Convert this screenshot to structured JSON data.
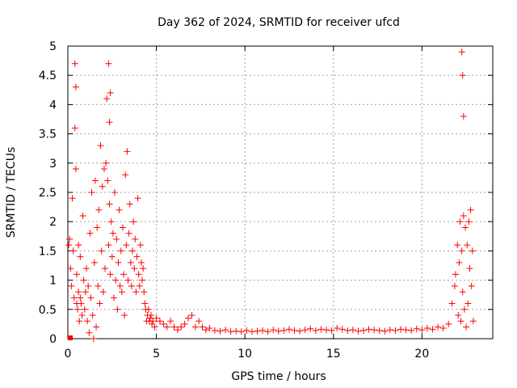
{
  "chart_data": {
    "type": "scatter",
    "title": "Day 362 of 2024, SRMTID for receiver ufcd",
    "xlabel": "GPS time / hours",
    "ylabel": "SRMTID / TECUs",
    "xlim": [
      0,
      24
    ],
    "ylim": [
      0,
      5
    ],
    "x_ticks": [
      0,
      5,
      10,
      15,
      20
    ],
    "x_tick_labels": [
      "0",
      "5",
      "10",
      "15",
      "20"
    ],
    "y_ticks": [
      0,
      0.5,
      1,
      1.5,
      2,
      2.5,
      3,
      3.5,
      4,
      4.5,
      5
    ],
    "y_tick_labels": [
      "0",
      "0.5",
      "1",
      "1.5",
      "2",
      "2.5",
      "3",
      "3.5",
      "4",
      "4.5",
      "5"
    ],
    "grid": true,
    "marker": "plus",
    "marker_color": "#ff0000",
    "series": [
      {
        "name": "SRMTID",
        "color": "#ff0000",
        "x": [
          0.05,
          0.1,
          0.15,
          0.2,
          0.25,
          0.3,
          0.35,
          0.4,
          0.4,
          0.45,
          0.45,
          0.5,
          0.5,
          0.55,
          0.6,
          0.6,
          0.65,
          0.7,
          0.7,
          0.75,
          0.8,
          0.85,
          0.9,
          0.95,
          1.0,
          1.05,
          1.1,
          1.15,
          1.2,
          1.25,
          1.3,
          1.35,
          1.4,
          1.45,
          1.5,
          1.55,
          1.6,
          1.65,
          1.7,
          1.75,
          1.8,
          1.85,
          1.9,
          1.95,
          2.0,
          2.05,
          2.1,
          2.15,
          2.2,
          2.25,
          2.3,
          2.3,
          2.35,
          2.35,
          2.4,
          2.4,
          2.45,
          2.5,
          2.55,
          2.6,
          2.65,
          2.7,
          2.75,
          2.8,
          2.85,
          2.9,
          2.95,
          3.0,
          3.05,
          3.1,
          3.15,
          3.2,
          3.25,
          3.3,
          3.35,
          3.4,
          3.45,
          3.5,
          3.55,
          3.6,
          3.65,
          3.7,
          3.75,
          3.8,
          3.85,
          3.9,
          3.95,
          4.0,
          4.05,
          4.1,
          4.15,
          4.2,
          4.25,
          4.3,
          4.35,
          4.4,
          4.45,
          4.5,
          4.55,
          4.6,
          4.65,
          4.7,
          4.75,
          4.8,
          4.9,
          5.0,
          5.2,
          5.4,
          5.6,
          5.8,
          6.0,
          6.2,
          6.4,
          6.6,
          6.8,
          7.0,
          7.2,
          7.4,
          7.6,
          7.8,
          8.0,
          8.3,
          8.6,
          8.9,
          9.2,
          9.5,
          9.8,
          10.1,
          10.4,
          10.7,
          11.0,
          11.3,
          11.6,
          11.9,
          12.2,
          12.5,
          12.8,
          13.1,
          13.4,
          13.7,
          14.0,
          14.3,
          14.6,
          14.9,
          15.2,
          15.5,
          15.8,
          16.1,
          16.4,
          16.7,
          17.0,
          17.3,
          17.6,
          17.9,
          18.2,
          18.5,
          18.8,
          19.1,
          19.4,
          19.7,
          20.0,
          20.3,
          20.6,
          20.9,
          21.2,
          21.5,
          21.7,
          21.85,
          21.9,
          22.0,
          22.05,
          22.1,
          22.15,
          22.2,
          22.25,
          22.25,
          22.3,
          22.3,
          22.35,
          22.35,
          22.4,
          22.45,
          22.5,
          22.55,
          22.6,
          22.65,
          22.7,
          22.75,
          22.8,
          22.85,
          22.9
        ],
        "y": [
          1.6,
          1.7,
          1.2,
          0.9,
          2.4,
          1.5,
          0.7,
          4.7,
          3.6,
          2.9,
          4.3,
          0.6,
          1.1,
          0.5,
          0.8,
          1.6,
          0.3,
          0.7,
          1.4,
          0.6,
          0.4,
          2.1,
          1.0,
          0.5,
          0.8,
          1.2,
          0.3,
          0.9,
          0.1,
          1.8,
          0.7,
          2.5,
          0.4,
          0.0,
          1.3,
          2.7,
          0.2,
          1.9,
          0.9,
          2.2,
          0.6,
          3.3,
          1.5,
          2.6,
          0.8,
          2.9,
          1.2,
          3.0,
          4.1,
          2.7,
          4.7,
          1.6,
          3.7,
          2.3,
          4.2,
          1.1,
          2.0,
          1.4,
          1.8,
          0.7,
          2.5,
          1.0,
          1.7,
          0.5,
          1.3,
          2.2,
          0.9,
          1.5,
          0.8,
          1.9,
          1.1,
          0.4,
          2.8,
          1.6,
          3.2,
          1.0,
          1.8,
          2.3,
          1.3,
          0.9,
          1.5,
          2.0,
          1.2,
          1.7,
          0.8,
          1.4,
          2.4,
          1.1,
          0.9,
          1.6,
          1.3,
          1.0,
          1.2,
          0.8,
          0.6,
          0.5,
          0.3,
          0.4,
          0.5,
          0.3,
          0.35,
          0.4,
          0.25,
          0.3,
          0.2,
          0.35,
          0.3,
          0.25,
          0.2,
          0.3,
          0.2,
          0.15,
          0.2,
          0.25,
          0.35,
          0.4,
          0.2,
          0.3,
          0.2,
          0.15,
          0.18,
          0.14,
          0.13,
          0.15,
          0.12,
          0.13,
          0.12,
          0.14,
          0.12,
          0.13,
          0.14,
          0.12,
          0.15,
          0.13,
          0.14,
          0.16,
          0.14,
          0.13,
          0.15,
          0.17,
          0.14,
          0.16,
          0.15,
          0.14,
          0.18,
          0.16,
          0.14,
          0.15,
          0.13,
          0.14,
          0.16,
          0.15,
          0.14,
          0.13,
          0.15,
          0.14,
          0.16,
          0.15,
          0.14,
          0.17,
          0.15,
          0.18,
          0.16,
          0.2,
          0.18,
          0.25,
          0.6,
          0.9,
          1.1,
          1.6,
          0.4,
          1.3,
          2.0,
          0.3,
          4.9,
          1.5,
          4.5,
          0.8,
          3.8,
          2.1,
          0.5,
          1.9,
          0.2,
          1.6,
          0.6,
          2.0,
          1.2,
          2.2,
          0.9,
          1.5,
          0.3
        ]
      }
    ]
  }
}
